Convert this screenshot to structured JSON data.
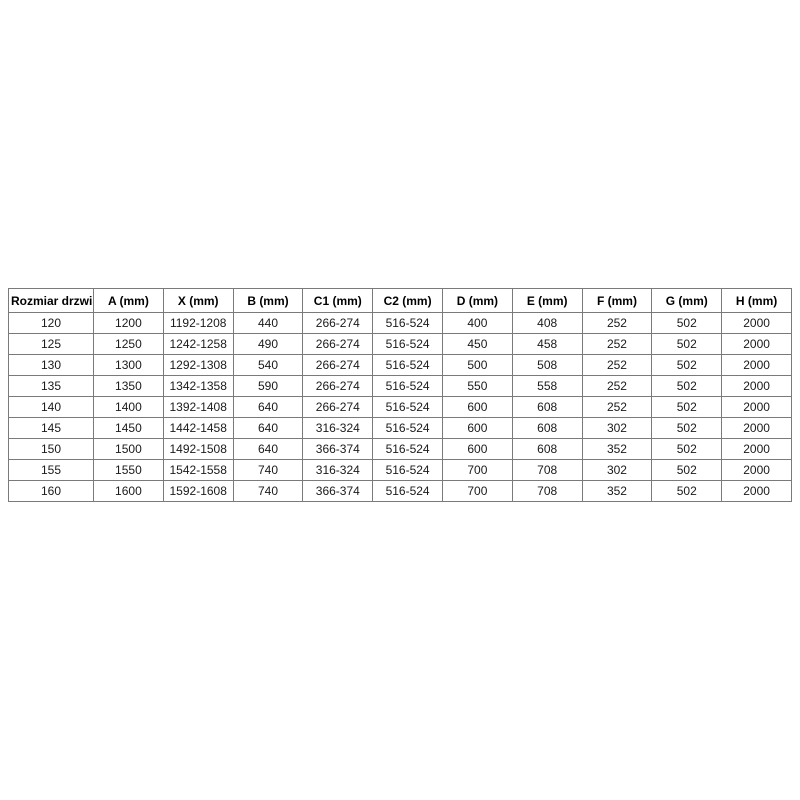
{
  "table": {
    "name": "door-size-specification-table",
    "columns": [
      "Rozmiar drzwi",
      "A (mm)",
      "X (mm)",
      "B (mm)",
      "C1 (mm)",
      "C2 (mm)",
      "D (mm)",
      "E (mm)",
      "F (mm)",
      "G (mm)",
      "H (mm)"
    ],
    "rows": [
      [
        "120",
        "1200",
        "1192-1208",
        "440",
        "266-274",
        "516-524",
        "400",
        "408",
        "252",
        "502",
        "2000"
      ],
      [
        "125",
        "1250",
        "1242-1258",
        "490",
        "266-274",
        "516-524",
        "450",
        "458",
        "252",
        "502",
        "2000"
      ],
      [
        "130",
        "1300",
        "1292-1308",
        "540",
        "266-274",
        "516-524",
        "500",
        "508",
        "252",
        "502",
        "2000"
      ],
      [
        "135",
        "1350",
        "1342-1358",
        "590",
        "266-274",
        "516-524",
        "550",
        "558",
        "252",
        "502",
        "2000"
      ],
      [
        "140",
        "1400",
        "1392-1408",
        "640",
        "266-274",
        "516-524",
        "600",
        "608",
        "252",
        "502",
        "2000"
      ],
      [
        "145",
        "1450",
        "1442-1458",
        "640",
        "316-324",
        "516-524",
        "600",
        "608",
        "302",
        "502",
        "2000"
      ],
      [
        "150",
        "1500",
        "1492-1508",
        "640",
        "366-374",
        "516-524",
        "600",
        "608",
        "352",
        "502",
        "2000"
      ],
      [
        "155",
        "1550",
        "1542-1558",
        "740",
        "316-324",
        "516-524",
        "700",
        "708",
        "302",
        "502",
        "2000"
      ],
      [
        "160",
        "1600",
        "1592-1608",
        "740",
        "366-374",
        "516-524",
        "700",
        "708",
        "352",
        "502",
        "2000"
      ]
    ],
    "colors": {
      "border": "#7a7a7a",
      "text": "#1a1a1a",
      "background": "#ffffff"
    }
  }
}
